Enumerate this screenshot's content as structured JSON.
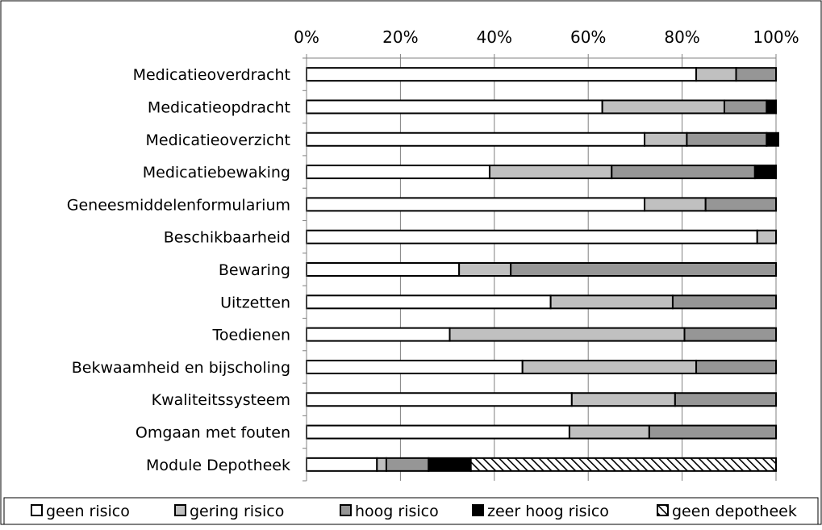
{
  "chart_data": {
    "type": "bar",
    "orientation": "horizontal",
    "stacked": true,
    "percent_scale": true,
    "categories": [
      "Medicatieoverdracht",
      "Medicatieopdracht",
      "Medicatieoverzicht",
      "Medicatiebewaking",
      "Geneesmiddelenformularium",
      "Beschikbaarheid",
      "Bewaring",
      "Uitzetten",
      "Toedienen",
      "Bekwaamheid en bijscholing",
      "Kwaliteitssysteem",
      "Omgaan met fouten",
      "Module Depotheek"
    ],
    "series": [
      {
        "name": "geen risico",
        "color": "#ffffff",
        "pattern": "none",
        "values": [
          83,
          63,
          72,
          39,
          72,
          96,
          32.5,
          52,
          30.5,
          46,
          56.5,
          56,
          15
        ]
      },
      {
        "name": "gering risico",
        "color": "#c0c0c0",
        "pattern": "none",
        "values": [
          8.5,
          26,
          9,
          26,
          13,
          4,
          11,
          26,
          50,
          37,
          22,
          17,
          2
        ]
      },
      {
        "name": "hoog risico",
        "color": "#969696",
        "pattern": "none",
        "values": [
          8.5,
          9,
          17,
          30.5,
          15,
          0,
          56.5,
          22,
          19.5,
          17,
          21.5,
          27,
          9
        ]
      },
      {
        "name": "zeer hoog risico",
        "color": "#000000",
        "pattern": "none",
        "values": [
          0,
          2,
          2.5,
          4.5,
          0,
          0,
          0,
          0,
          0,
          0,
          0,
          0,
          9
        ]
      },
      {
        "name": "geen depotheek",
        "color": "#ffffff",
        "pattern": "diagonal-hatch",
        "values": [
          0,
          0,
          0,
          0,
          0,
          0,
          0,
          0,
          0,
          0,
          0,
          0,
          65
        ]
      }
    ],
    "x_ticks": [
      "0%",
      "20%",
      "40%",
      "60%",
      "80%",
      "100%"
    ],
    "xlim": [
      0,
      100
    ],
    "x_axis_position": "top",
    "grid": "vertical",
    "legend_position": "bottom"
  }
}
